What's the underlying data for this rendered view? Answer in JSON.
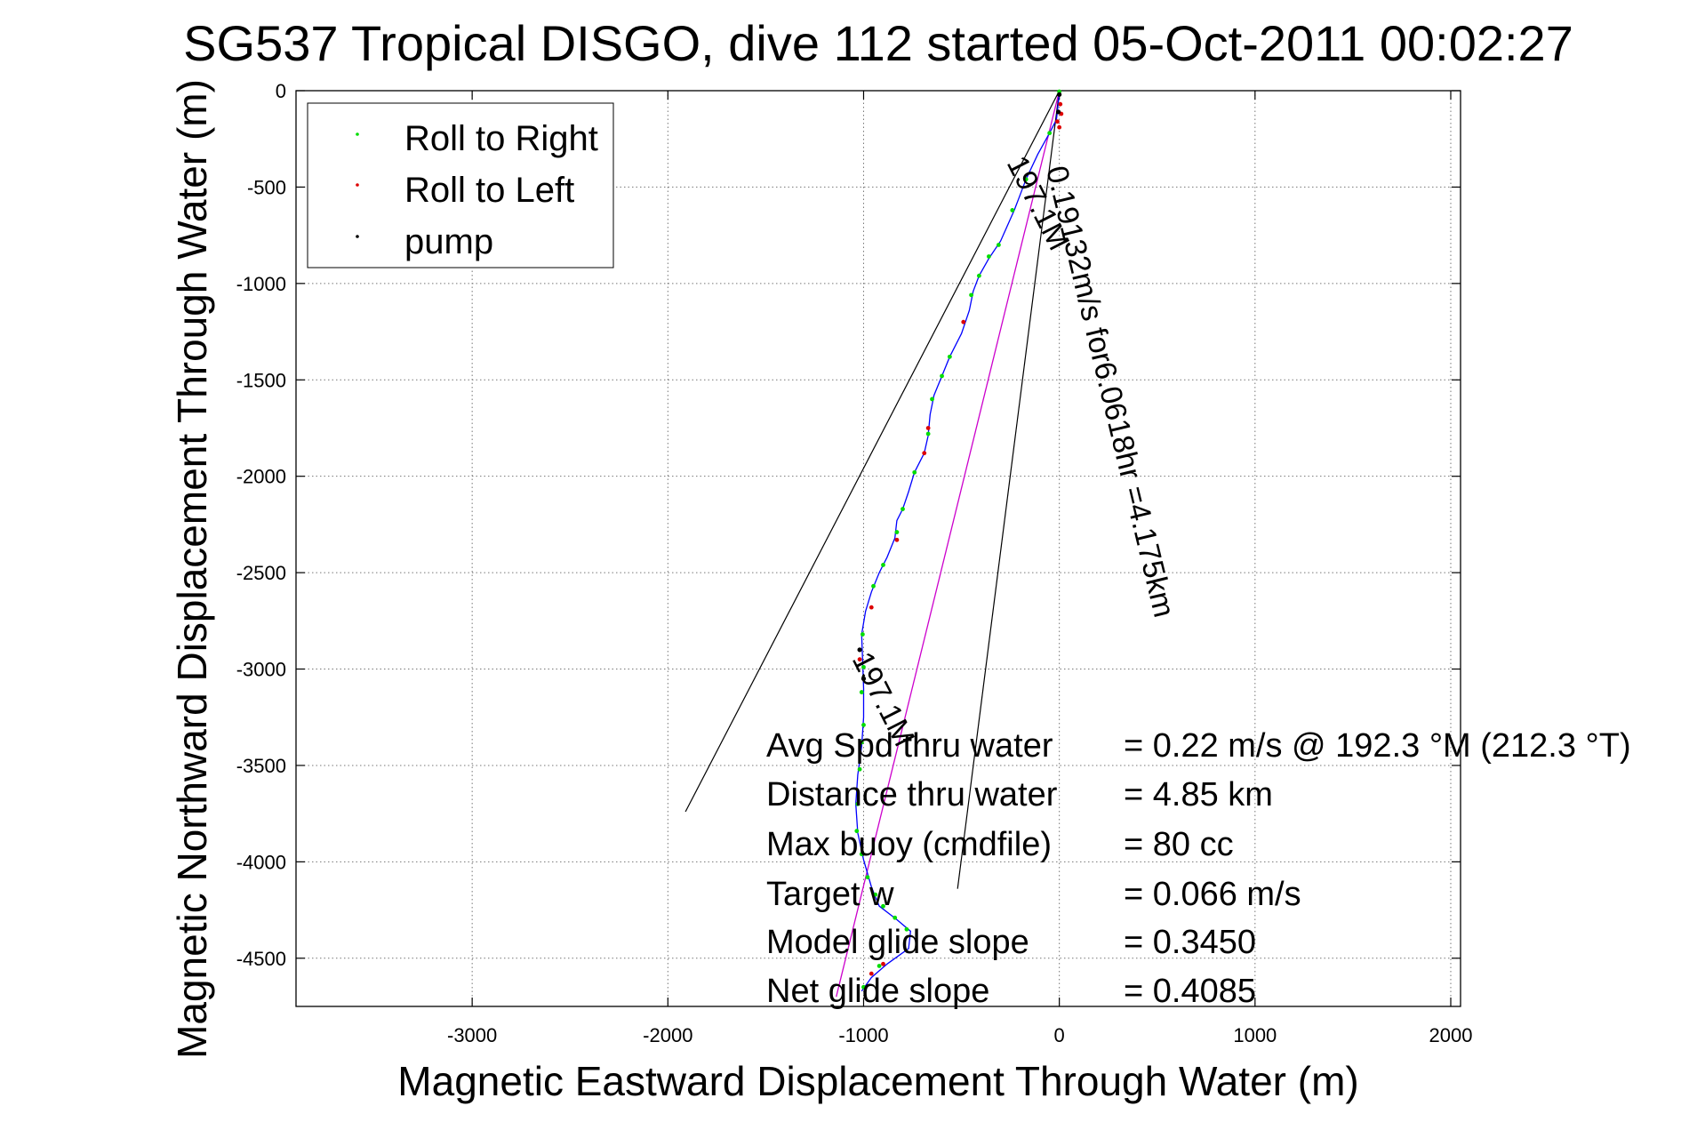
{
  "chart_data": {
    "type": "scatter",
    "title": "SG537 Tropical DISGO, dive 112 started 05-Oct-2011 00:02:27",
    "xlabel": "Magnetic Eastward Displacement Through Water (m)",
    "ylabel": "Magnetic Northward Displacement Through Water (m)",
    "xlim": [
      -3900,
      2050
    ],
    "ylim": [
      -4750,
      0
    ],
    "x_ticks": [
      -3000,
      -2000,
      -1000,
      0,
      1000,
      2000
    ],
    "y_ticks": [
      0,
      -500,
      -1000,
      -1500,
      -2000,
      -2500,
      -3000,
      -3500,
      -4000,
      -4500
    ],
    "grid": true,
    "legend_placement": "top-left",
    "legend": [
      {
        "label": "Roll to Right",
        "color": "#00dd00"
      },
      {
        "label": "Roll to Left",
        "color": "#dd0000"
      },
      {
        "label": "pump",
        "color": "#000000"
      }
    ],
    "track": {
      "color": "#0000ff",
      "points": [
        [
          0,
          0
        ],
        [
          -5,
          -60
        ],
        [
          -15,
          -150
        ],
        [
          -50,
          -220
        ],
        [
          -110,
          -330
        ],
        [
          -170,
          -460
        ],
        [
          -230,
          -620
        ],
        [
          -300,
          -780
        ],
        [
          -360,
          -870
        ],
        [
          -410,
          -960
        ],
        [
          -440,
          -1040
        ],
        [
          -460,
          -1140
        ],
        [
          -500,
          -1260
        ],
        [
          -560,
          -1380
        ],
        [
          -600,
          -1480
        ],
        [
          -640,
          -1580
        ],
        [
          -660,
          -1680
        ],
        [
          -670,
          -1790
        ],
        [
          -690,
          -1880
        ],
        [
          -740,
          -1980
        ],
        [
          -770,
          -2080
        ],
        [
          -800,
          -2170
        ],
        [
          -830,
          -2230
        ],
        [
          -840,
          -2320
        ],
        [
          -880,
          -2420
        ],
        [
          -920,
          -2500
        ],
        [
          -960,
          -2600
        ],
        [
          -990,
          -2700
        ],
        [
          -1010,
          -2820
        ],
        [
          -1005,
          -2960
        ],
        [
          -1000,
          -3100
        ],
        [
          -1000,
          -3250
        ],
        [
          -1010,
          -3400
        ],
        [
          -1030,
          -3550
        ],
        [
          -1040,
          -3700
        ],
        [
          -1030,
          -3850
        ],
        [
          -1000,
          -3990
        ],
        [
          -960,
          -4130
        ],
        [
          -920,
          -4230
        ],
        [
          -830,
          -4300
        ],
        [
          -760,
          -4360
        ],
        [
          -770,
          -4450
        ],
        [
          -880,
          -4530
        ],
        [
          -960,
          -4600
        ],
        [
          -1010,
          -4670
        ]
      ]
    },
    "roll_right": [
      [
        0,
        -5
      ],
      [
        -50,
        -220
      ],
      [
        -170,
        -460
      ],
      [
        -240,
        -620
      ],
      [
        -310,
        -800
      ],
      [
        -360,
        -860
      ],
      [
        -410,
        -960
      ],
      [
        -450,
        -1060
      ],
      [
        -560,
        -1380
      ],
      [
        -600,
        -1480
      ],
      [
        -650,
        -1600
      ],
      [
        -670,
        -1780
      ],
      [
        -740,
        -1980
      ],
      [
        -800,
        -2170
      ],
      [
        -830,
        -2290
      ],
      [
        -900,
        -2460
      ],
      [
        -950,
        -2570
      ],
      [
        -1005,
        -2820
      ],
      [
        -1000,
        -2990
      ],
      [
        -1010,
        -3120
      ],
      [
        -1000,
        -3290
      ],
      [
        -1010,
        -3380
      ],
      [
        -1020,
        -3520
      ],
      [
        -1030,
        -3700
      ],
      [
        -1035,
        -3840
      ],
      [
        -1010,
        -3960
      ],
      [
        -980,
        -4080
      ],
      [
        -940,
        -4170
      ],
      [
        -900,
        -4230
      ],
      [
        -840,
        -4290
      ],
      [
        -780,
        -4350
      ],
      [
        -920,
        -4540
      ],
      [
        -1000,
        -4650
      ]
    ],
    "roll_left": [
      [
        5,
        -70
      ],
      [
        10,
        -120
      ],
      [
        -10,
        -160
      ],
      [
        0,
        -190
      ],
      [
        -490,
        -1200
      ],
      [
        -670,
        -1750
      ],
      [
        -690,
        -1880
      ],
      [
        -830,
        -2330
      ],
      [
        -960,
        -2680
      ],
      [
        -1020,
        -2950
      ],
      [
        -960,
        -4580
      ],
      [
        -900,
        -4530
      ]
    ],
    "pump": [
      [
        0,
        -20
      ],
      [
        -5,
        -110
      ],
      [
        -1020,
        -2900
      ],
      [
        -1000,
        -3050
      ]
    ],
    "model_line": {
      "color": "#cc00cc",
      "points": [
        [
          0,
          0
        ],
        [
          -1140,
          -4700
        ]
      ],
      "label": "0.19132m/s for6.0618hr =4.175km"
    },
    "heading_wedge": {
      "color": "#000000",
      "left_line": [
        [
          0,
          0
        ],
        [
          -1910,
          -3740
        ]
      ],
      "right_line": [
        [
          0,
          0
        ],
        [
          -520,
          -4140
        ]
      ],
      "labels": [
        "197.1M",
        "197.1M"
      ]
    },
    "annotation_labels": [
      "Avg Spd thru water",
      "Distance thru water",
      "Max buoy (cmdfile)",
      "Target w",
      "Model glide slope",
      "Net glide slope"
    ],
    "annotation_values": [
      "=  0.22 m/s @ 192.3 °M (212.3 °T)",
      "=  4.85 km",
      "= 80 cc",
      "= 0.066 m/s",
      "= 0.3450",
      "= 0.4085"
    ]
  }
}
